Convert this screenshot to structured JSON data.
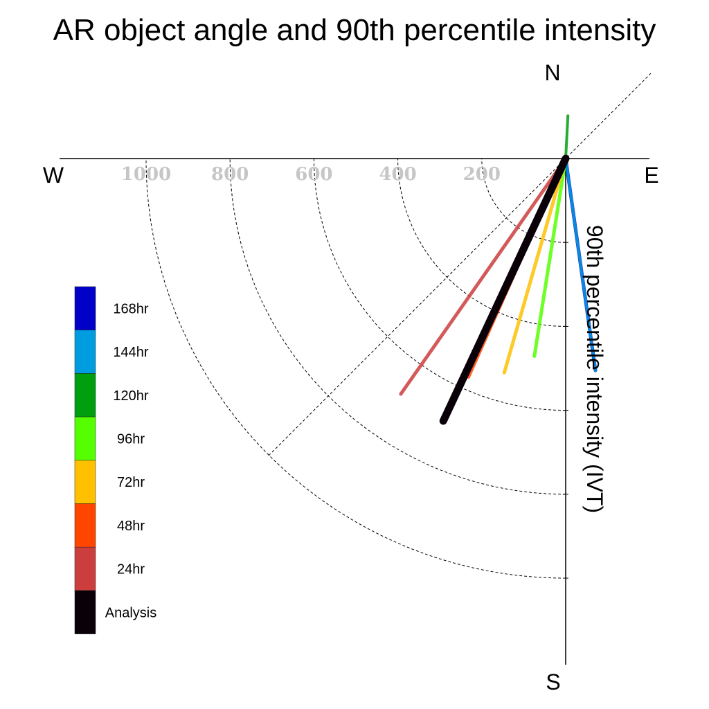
{
  "chart_data": {
    "type": "polar-vector",
    "title": "AR object angle and 90th percentile intensity",
    "radial_label": "90th percentile intensity (IVT)",
    "compass": {
      "north": "N",
      "south": "S",
      "east": "E",
      "west": "W"
    },
    "radial_ticks": [
      {
        "value": 200,
        "label": "200"
      },
      {
        "value": 400,
        "label": "400"
      },
      {
        "value": 600,
        "label": "600"
      },
      {
        "value": 800,
        "label": "800"
      },
      {
        "value": 1000,
        "label": "1000"
      }
    ],
    "radial_max": 1000,
    "grid": true,
    "legend_position": "left",
    "series": [
      {
        "name": "24hr",
        "color": "#cc3d3d",
        "intensity_start": 0,
        "intensity": 685,
        "angle_deg": 215
      },
      {
        "name": "48hr",
        "color": "#ff4500",
        "intensity_start": 0,
        "intensity": 570,
        "angle_deg": 204
      },
      {
        "name": "72hr",
        "color": "#ffc000",
        "intensity_start": 0,
        "intensity": 531,
        "angle_deg": 196
      },
      {
        "name": "96hr",
        "color": "#55ff00",
        "intensity_start": 0,
        "intensity": 477,
        "angle_deg": 189
      },
      {
        "name": "120hr",
        "color": "#009f10",
        "intensity_start": 0,
        "intensity": 102,
        "angle_deg": 3
      },
      {
        "name": "144hr",
        "color": "#009ce0",
        "intensity_start": 0,
        "intensity": 510,
        "angle_deg": 172
      },
      {
        "name": "168hr",
        "color": "#0000c8",
        "intensity_start": 0,
        "intensity": 510,
        "angle_deg": 172
      },
      {
        "name": "Analysis",
        "color": "#0a0008",
        "intensity_start": 0,
        "intensity": 690,
        "angle_deg": 205
      }
    ],
    "legend_order": [
      "168hr",
      "144hr",
      "120hr",
      "96hr",
      "72hr",
      "48hr",
      "24hr",
      "Analysis"
    ]
  }
}
